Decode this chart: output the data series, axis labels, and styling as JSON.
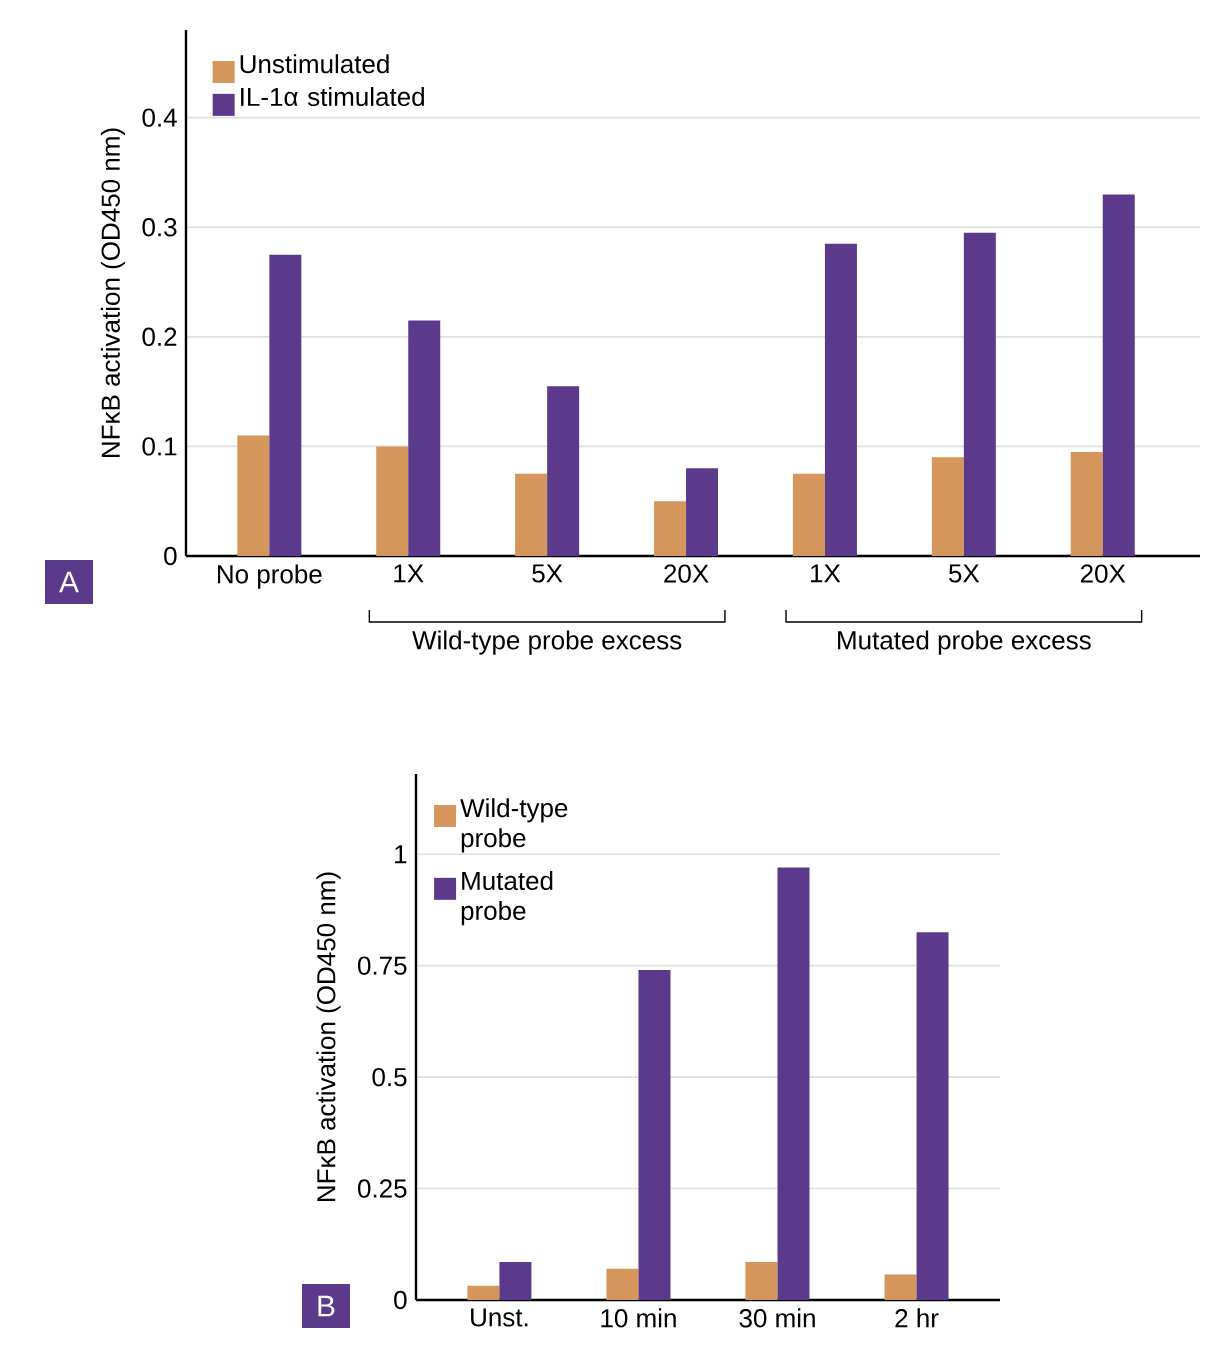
{
  "chart_data": [
    {
      "type": "bar",
      "categories": [
        "No probe",
        "1X",
        "5X",
        "20X",
        "1X",
        "5X",
        "20X"
      ],
      "series": [
        {
          "name": "Unstimulated",
          "color": "#d4965a",
          "values": [
            0.11,
            0.1,
            0.075,
            0.05,
            0.075,
            0.09,
            0.095
          ]
        },
        {
          "name": "IL-1α stimulated",
          "color": "#5b3a8c",
          "values": [
            0.275,
            0.215,
            0.155,
            0.08,
            0.285,
            0.295,
            0.33
          ]
        }
      ],
      "ylabel": "NFκB activation (OD450 nm)",
      "ylim": [
        0,
        0.48
      ],
      "yticks": [
        0,
        0.1,
        0.2,
        0.3,
        0.4
      ],
      "grid": "y",
      "legend": "top left",
      "annotations": [
        "A",
        "Wild-type probe excess",
        "Mutated probe excess"
      ]
    },
    {
      "type": "bar",
      "categories": [
        "Unst.",
        "10 min",
        "30 min",
        "2 hr"
      ],
      "series": [
        {
          "name": "Wild-type probe",
          "color": "#d4965a",
          "values": [
            0.032,
            0.07,
            0.085,
            0.057
          ]
        },
        {
          "name": "Mutated probe",
          "color": "#5b3a8c",
          "values": [
            0.085,
            0.74,
            0.97,
            0.825
          ]
        }
      ],
      "ylabel": "NFκB activation (OD450 nm)",
      "ylim": [
        0,
        1.18
      ],
      "yticks": [
        0,
        0.25,
        0.5,
        0.75,
        1
      ],
      "grid": "y",
      "legend": "top left",
      "annotations": [
        "B"
      ]
    }
  ]
}
